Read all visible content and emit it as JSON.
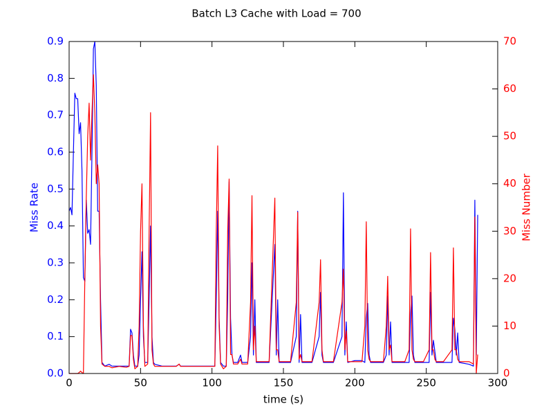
{
  "chart_data": {
    "type": "line",
    "title": "Batch L3 Cache with Load = 700",
    "xlabel": "time (s)",
    "ylabel": "Miss Rate",
    "y2label": "Miss Number",
    "x": [
      0,
      1,
      2,
      3,
      4,
      5,
      6,
      7,
      8,
      9,
      10,
      11,
      12,
      13,
      14,
      15,
      16,
      17,
      18,
      19,
      20,
      21,
      22,
      23,
      25,
      28,
      30,
      35,
      40,
      42,
      43,
      44,
      45,
      46,
      48,
      49,
      50,
      51,
      52,
      53,
      55,
      56,
      57,
      58,
      59,
      60,
      65,
      70,
      75,
      77,
      78,
      85,
      90,
      95,
      100,
      102,
      103,
      104,
      105,
      106,
      108,
      110,
      111,
      112,
      113,
      114,
      115,
      118,
      120,
      121,
      125,
      127,
      128,
      129,
      130,
      131,
      135,
      140,
      144,
      145,
      146,
      147,
      150,
      155,
      159,
      160,
      161,
      162,
      163,
      170,
      175,
      176,
      177,
      178,
      180,
      185,
      191,
      192,
      193,
      194,
      195,
      200,
      205,
      207,
      208,
      209,
      210,
      211,
      215,
      220,
      222,
      223,
      224,
      225,
      226,
      230,
      235,
      238,
      239,
      240,
      241,
      242,
      248,
      252,
      253,
      254,
      255,
      256,
      257,
      262,
      268,
      269,
      270,
      271,
      272,
      273,
      280,
      283,
      284,
      285,
      286
    ],
    "series": [
      {
        "name": "Miss Rate",
        "color": "#0000ff",
        "values": [
          0.44,
          0.45,
          0.43,
          0.6,
          0.76,
          0.745,
          0.745,
          0.65,
          0.68,
          0.55,
          0.26,
          0.25,
          0.47,
          0.38,
          0.39,
          0.35,
          0.6,
          0.88,
          0.9,
          0.78,
          0.44,
          0.44,
          0.2,
          0.03,
          0.02,
          0.025,
          0.02,
          0.02,
          0.02,
          0.02,
          0.12,
          0.11,
          0.05,
          0.02,
          0.02,
          0.05,
          0.2,
          0.33,
          0.1,
          0.03,
          0.03,
          0.2,
          0.4,
          0.1,
          0.03,
          0.025,
          0.02,
          0.02,
          0.02,
          0.025,
          0.02,
          0.02,
          0.02,
          0.02,
          0.02,
          0.02,
          0.2,
          0.44,
          0.15,
          0.03,
          0.02,
          0.02,
          0.2,
          0.52,
          0.15,
          0.05,
          0.03,
          0.03,
          0.05,
          0.03,
          0.03,
          0.1,
          0.3,
          0.05,
          0.2,
          0.03,
          0.03,
          0.03,
          0.35,
          0.05,
          0.2,
          0.03,
          0.03,
          0.03,
          0.1,
          0.44,
          0.03,
          0.16,
          0.03,
          0.03,
          0.1,
          0.22,
          0.05,
          0.03,
          0.03,
          0.03,
          0.1,
          0.49,
          0.05,
          0.14,
          0.03,
          0.035,
          0.035,
          0.03,
          0.15,
          0.19,
          0.05,
          0.03,
          0.03,
          0.03,
          0.05,
          0.21,
          0.05,
          0.14,
          0.03,
          0.03,
          0.03,
          0.03,
          0.16,
          0.21,
          0.05,
          0.03,
          0.03,
          0.03,
          0.22,
          0.05,
          0.09,
          0.06,
          0.03,
          0.03,
          0.03,
          0.15,
          0.12,
          0.05,
          0.11,
          0.03,
          0.025,
          0.02,
          0.47,
          0.05,
          0.43
        ]
      },
      {
        "name": "Miss Number",
        "color": "#ff0000",
        "axis": "y2",
        "values": [
          0,
          0,
          0,
          0,
          0,
          0,
          0,
          0.2,
          0.5,
          0.2,
          0,
          20,
          37,
          50,
          57,
          45,
          55,
          63,
          55,
          40,
          44,
          40,
          10,
          2,
          1.5,
          1.5,
          1.2,
          1.5,
          1.3,
          1.5,
          8,
          8,
          3,
          1,
          1.5,
          10,
          30,
          40,
          10,
          1.5,
          2,
          30,
          55,
          5,
          2,
          1.5,
          1.5,
          1.5,
          1.5,
          2,
          1.5,
          1.5,
          1.5,
          1.5,
          1.5,
          1.5,
          30,
          48,
          10,
          2,
          1,
          1.5,
          30,
          41,
          4,
          4,
          2,
          2,
          3,
          2,
          2,
          15,
          37.5,
          5,
          10,
          2.5,
          2.5,
          2.5,
          37,
          5,
          5,
          2.5,
          2.5,
          2.5,
          15,
          34,
          3,
          4,
          2.5,
          2.5,
          15,
          24,
          5,
          2.5,
          2.5,
          2.5,
          15,
          22,
          5,
          9,
          2.5,
          2.5,
          2.5,
          10,
          32,
          5,
          3,
          2.5,
          2.5,
          2.5,
          10,
          20.5,
          5,
          6,
          2.5,
          2.5,
          2.5,
          5,
          30.5,
          5,
          3,
          2.5,
          2.5,
          5,
          25.5,
          5,
          5,
          3,
          2.5,
          2.5,
          5,
          26.5,
          5,
          5,
          3,
          2.5,
          2.5,
          2,
          33,
          0,
          4
        ]
      }
    ],
    "xlim": [
      0,
      300
    ],
    "xticks": [
      0,
      50,
      100,
      150,
      200,
      250,
      300
    ],
    "ylim": [
      0,
      0.9
    ],
    "yticks": [
      {
        "value": 0,
        "label": "0.0"
      },
      0.1,
      0.2,
      0.3,
      0.4,
      0.5,
      0.6,
      0.7,
      0.8,
      0.9
    ],
    "y2lim": [
      0,
      70
    ],
    "y2ticks": [
      0,
      10,
      20,
      30,
      40,
      50,
      60,
      70
    ]
  }
}
